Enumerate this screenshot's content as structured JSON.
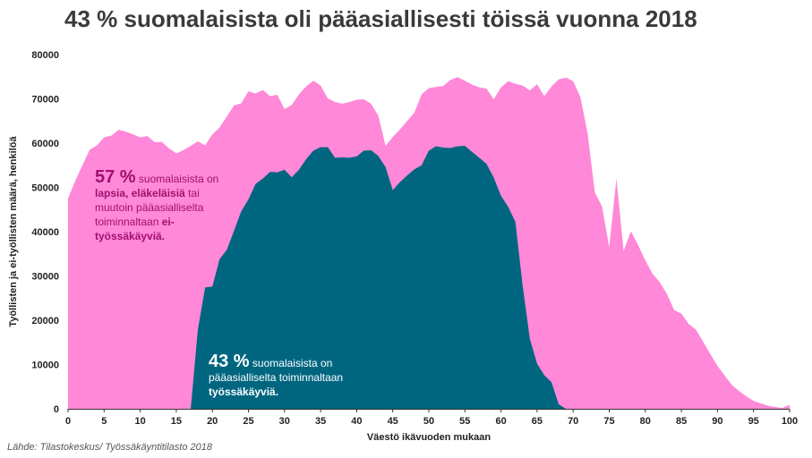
{
  "title": "43 % suomalaisista oli pääasiallisesti töissä vuonna 2018",
  "source": "Lähde: Tilastokeskus/ Työssäkäyntitilasto 2018",
  "colors": {
    "non_employed": "#ff88d8",
    "employed": "#006680",
    "nonwork_text": "#a0106e",
    "work_text": "#ffffff"
  },
  "annotations": {
    "nonwork": {
      "pct": "57 %",
      "t1": " suomalaisista on ",
      "b1": "lapsia, eläkeläisiä",
      "t2": " tai muutoin pääasialliselta toiminnaltaan ",
      "b2": "ei-työssäkäyviä."
    },
    "work": {
      "pct": "43 %",
      "t1": " suomalaisista on pääasialliselta toiminnaltaan ",
      "b1": "työssäkäyviä."
    }
  },
  "chart_data": {
    "type": "area",
    "title": "43 % suomalaisista oli pääasiallisesti töissä vuonna 2018",
    "xlabel": "Väestö ikävuoden mukaan",
    "ylabel": "Työllisten ja ei-työllisten määrä, henkilöä",
    "xlim": [
      0,
      100
    ],
    "ylim": [
      0,
      80000
    ],
    "x_ticks": [
      0,
      5,
      10,
      15,
      20,
      25,
      30,
      35,
      40,
      45,
      50,
      55,
      60,
      65,
      70,
      75,
      80,
      85,
      90,
      95,
      100
    ],
    "y_ticks": [
      0,
      10000,
      20000,
      30000,
      40000,
      50000,
      60000,
      70000,
      80000
    ],
    "grid": false,
    "stacked": false,
    "x": [
      0,
      1,
      2,
      3,
      4,
      5,
      6,
      7,
      8,
      9,
      10,
      11,
      12,
      13,
      14,
      15,
      16,
      17,
      18,
      19,
      20,
      21,
      22,
      23,
      24,
      25,
      26,
      27,
      28,
      29,
      30,
      31,
      32,
      33,
      34,
      35,
      36,
      37,
      38,
      39,
      40,
      41,
      42,
      43,
      44,
      45,
      46,
      47,
      48,
      49,
      50,
      51,
      52,
      53,
      54,
      55,
      56,
      57,
      58,
      59,
      60,
      61,
      62,
      63,
      64,
      65,
      66,
      67,
      68,
      69,
      70,
      71,
      72,
      73,
      74,
      75,
      76,
      77,
      78,
      79,
      80,
      81,
      82,
      83,
      84,
      85,
      86,
      87,
      88,
      89,
      90,
      91,
      92,
      93,
      94,
      95,
      96,
      97,
      98,
      99,
      100
    ],
    "series": [
      {
        "name": "",
        "role": "total_population",
        "values": [
          47500,
          51500,
          55000,
          58500,
          59500,
          61300,
          61700,
          63000,
          62600,
          62000,
          61300,
          61600,
          60200,
          60300,
          58800,
          57700,
          58400,
          59400,
          60400,
          59500,
          62000,
          63500,
          66000,
          68500,
          69000,
          71700,
          71200,
          72000,
          70600,
          70900,
          67700,
          68600,
          71000,
          72800,
          74100,
          73000,
          70100,
          69300,
          68900,
          69300,
          69800,
          69900,
          68900,
          66200,
          59400,
          61400,
          63100,
          65000,
          66900,
          71000,
          72400,
          72700,
          72900,
          74300,
          74900,
          74100,
          73200,
          72600,
          72300,
          69900,
          72600,
          74000,
          73400,
          73000,
          71900,
          73300,
          70600,
          72800,
          74400,
          74800,
          74000,
          70400,
          62300,
          48900,
          45700,
          36500,
          52000,
          35600,
          40100,
          37000,
          33500,
          30500,
          28600,
          25900,
          22300,
          21500,
          19200,
          17900,
          15200,
          12400,
          9700,
          7500,
          5400,
          4000,
          2800,
          1800,
          1200,
          700,
          400,
          200,
          900
        ]
      },
      {
        "name": "",
        "role": "employed",
        "values": [
          0,
          0,
          0,
          0,
          0,
          0,
          0,
          0,
          0,
          0,
          0,
          0,
          0,
          0,
          0,
          0,
          0,
          0,
          18000,
          27400,
          27600,
          33800,
          35900,
          40200,
          44600,
          47300,
          50800,
          52000,
          53500,
          53400,
          54000,
          52300,
          54000,
          56400,
          58300,
          59100,
          59100,
          56700,
          56800,
          56700,
          57000,
          58300,
          58400,
          57100,
          54600,
          49400,
          51200,
          52700,
          54100,
          55000,
          58300,
          59300,
          59000,
          58900,
          59300,
          59400,
          58000,
          56700,
          55300,
          52200,
          48100,
          45600,
          42200,
          27800,
          15800,
          10200,
          7600,
          6000,
          1000,
          0,
          0,
          0,
          0,
          0,
          0,
          0,
          0,
          0,
          0,
          0,
          0,
          0,
          0,
          0,
          0,
          0,
          0,
          0,
          0,
          0,
          0,
          0,
          0,
          0,
          0,
          0,
          0,
          0,
          0,
          0,
          0
        ]
      }
    ]
  }
}
